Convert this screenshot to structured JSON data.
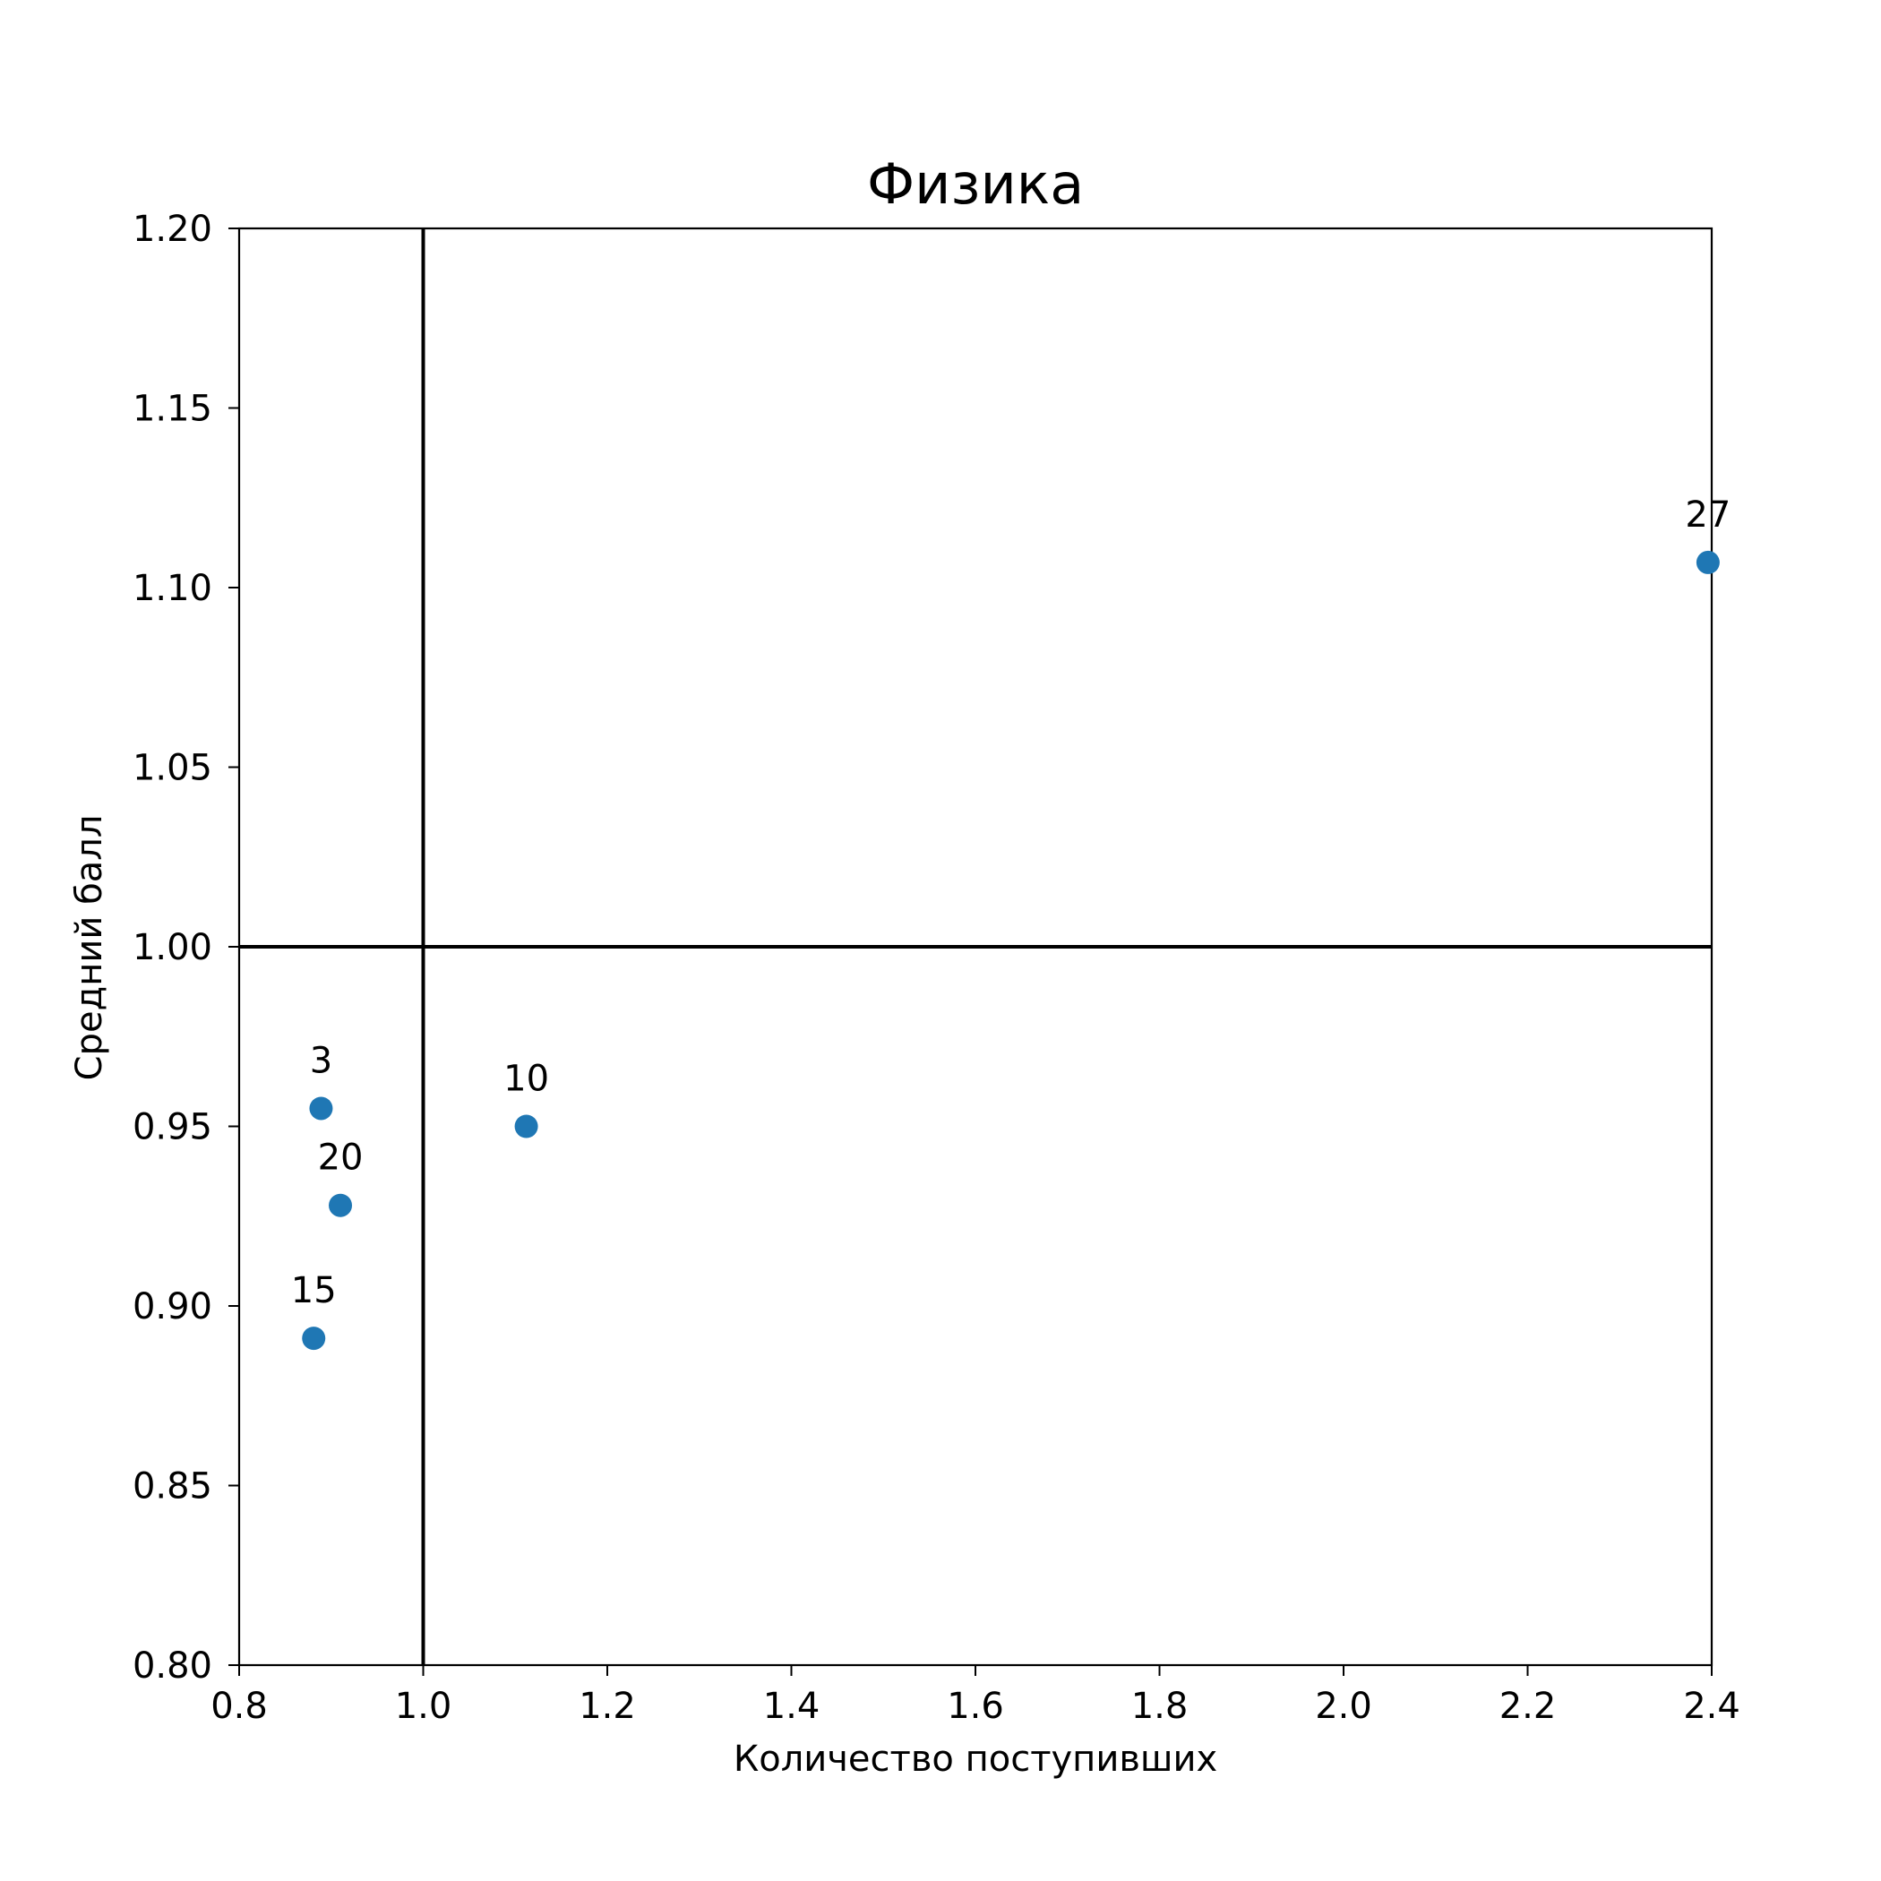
{
  "chart_data": {
    "type": "scatter",
    "title": "Физика",
    "xlabel": "Количество поступивших",
    "ylabel": "Средний балл",
    "xlim": [
      0.8,
      2.4
    ],
    "ylim": [
      0.8,
      1.2
    ],
    "xticks": [
      "0.8",
      "1.0",
      "1.2",
      "1.4",
      "1.6",
      "1.8",
      "2.0",
      "2.2",
      "2.4"
    ],
    "yticks": [
      "0.80",
      "0.85",
      "0.90",
      "0.95",
      "1.00",
      "1.05",
      "1.10",
      "1.15",
      "1.20"
    ],
    "reference_lines": {
      "x": 1.0,
      "y": 1.0
    },
    "grid": false,
    "point_color": "#1f77b4",
    "points": [
      {
        "label": "3",
        "x": 0.889,
        "y": 0.955
      },
      {
        "label": "10",
        "x": 1.112,
        "y": 0.95
      },
      {
        "label": "20",
        "x": 0.91,
        "y": 0.928
      },
      {
        "label": "15",
        "x": 0.881,
        "y": 0.891
      },
      {
        "label": "27",
        "x": 2.396,
        "y": 1.107
      }
    ]
  }
}
